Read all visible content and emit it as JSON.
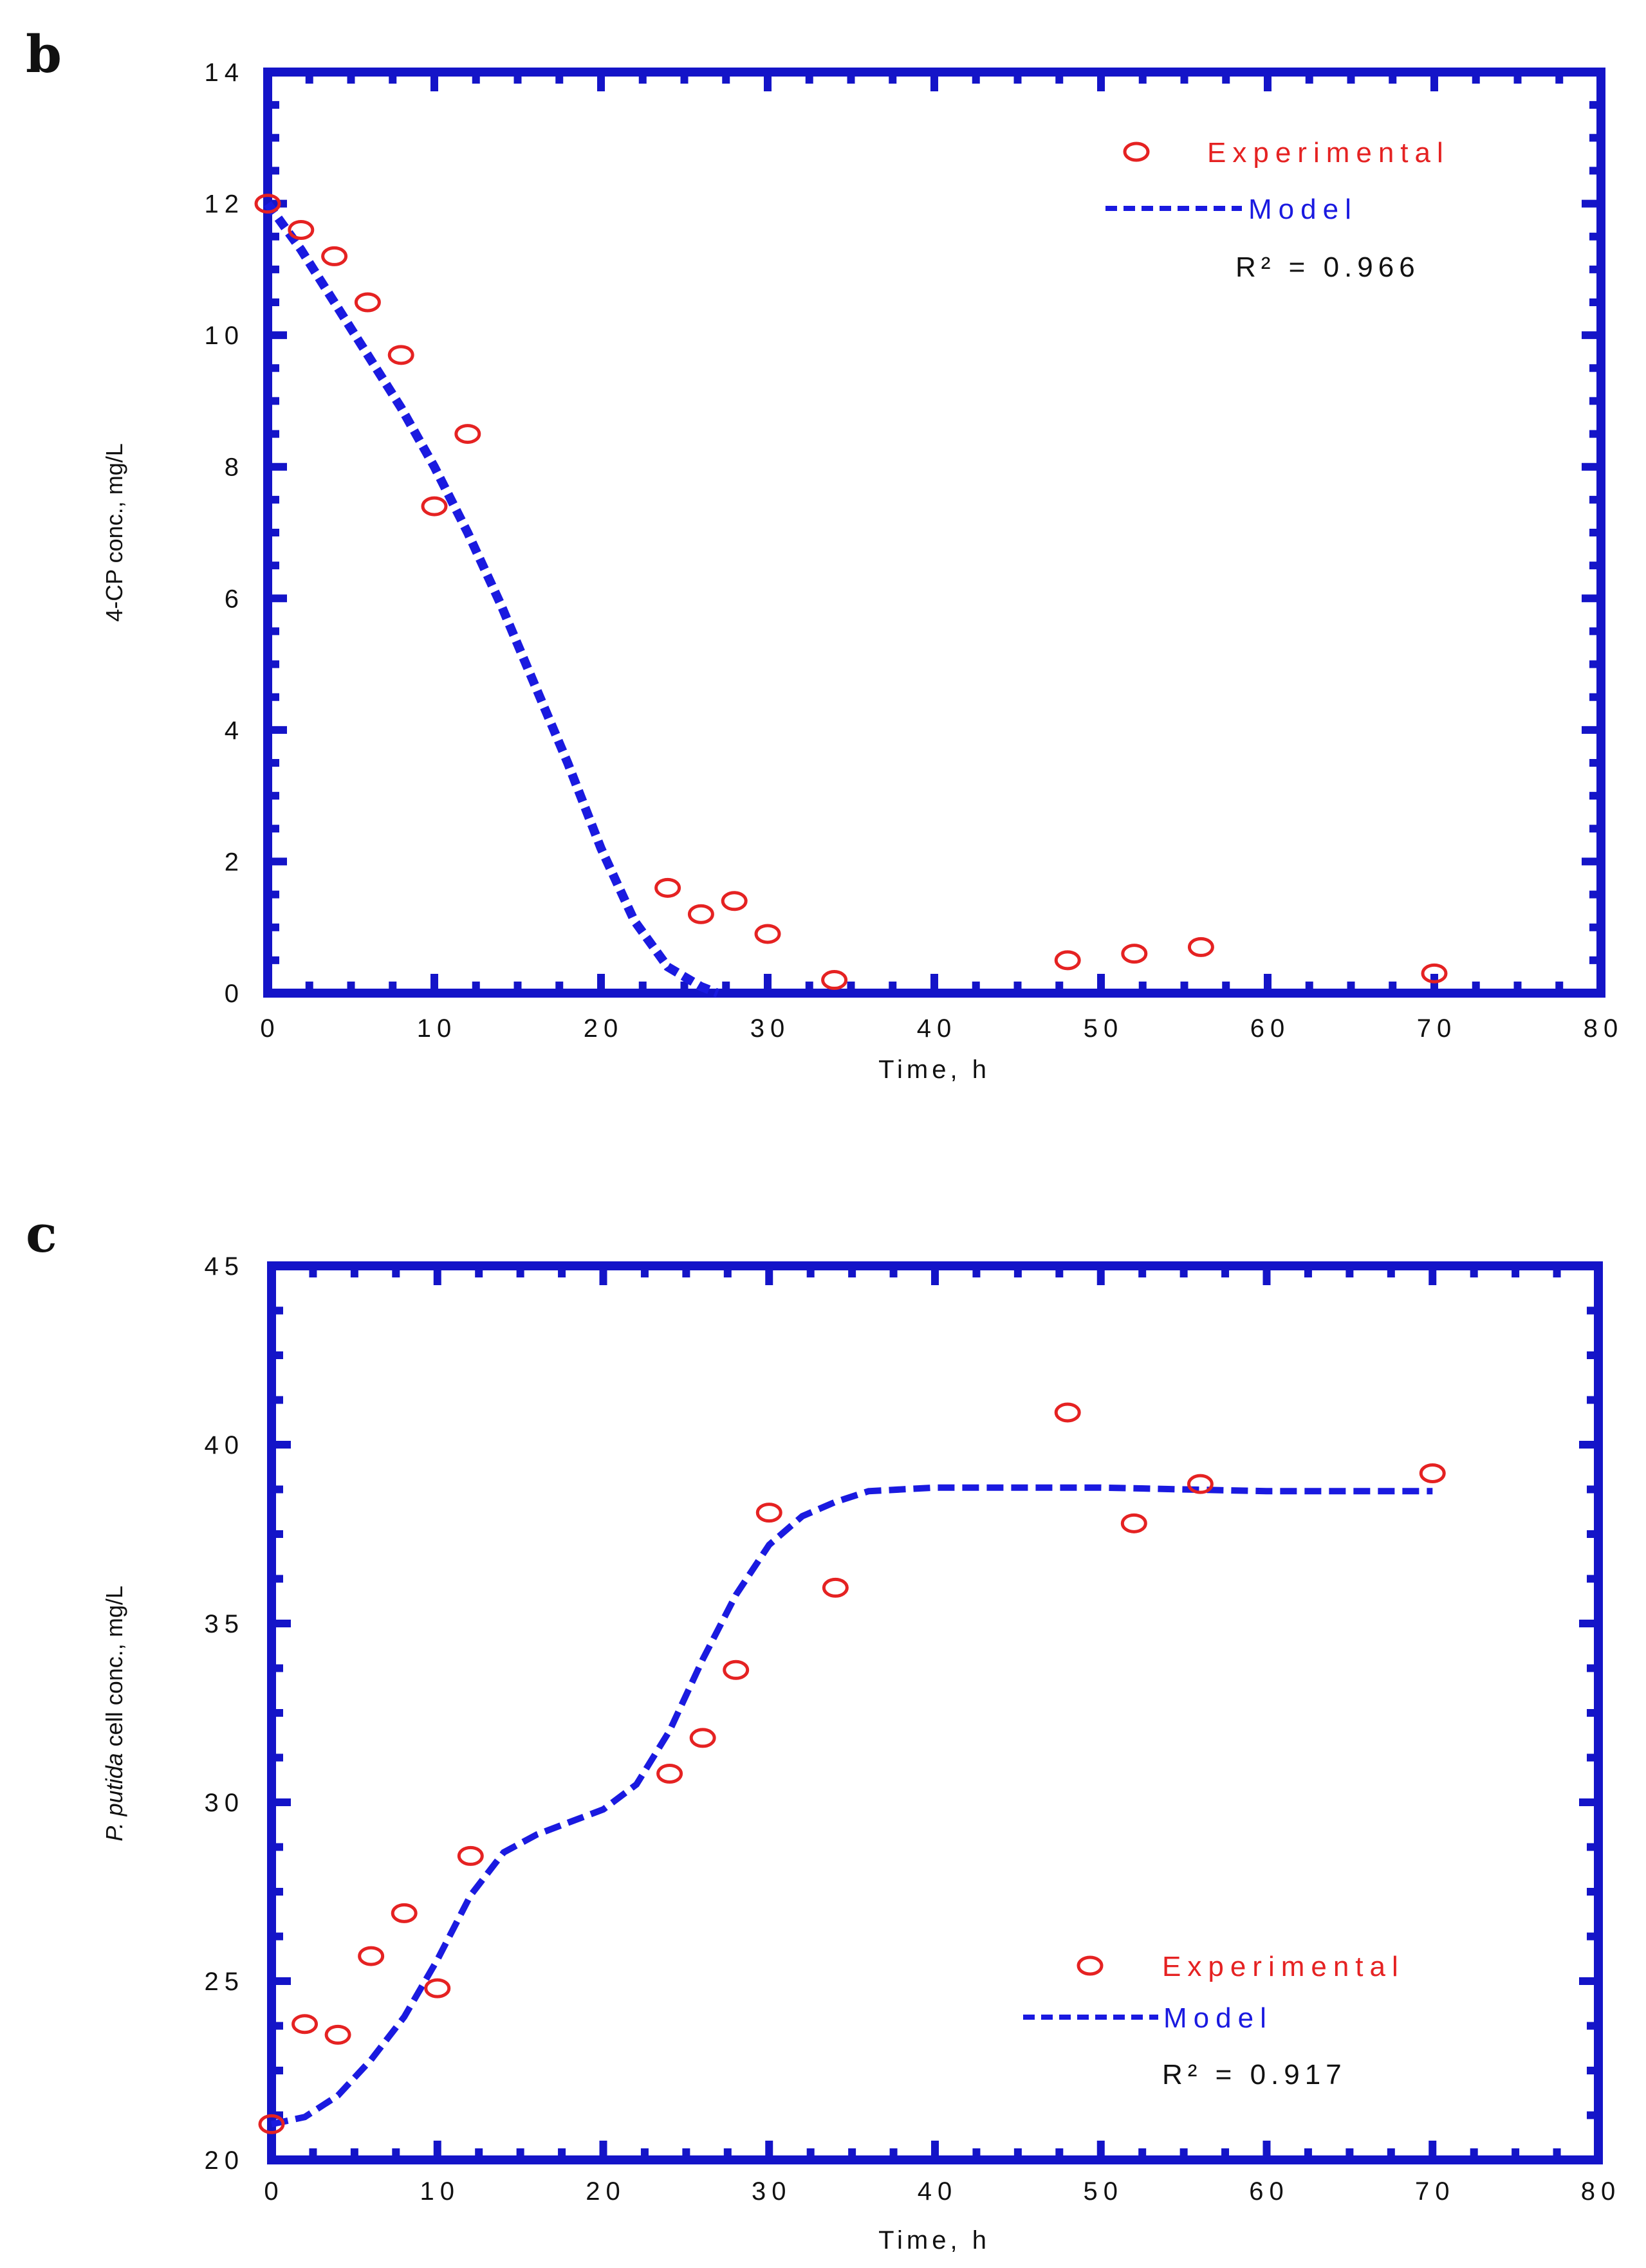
{
  "colors": {
    "frame": "#1414c8",
    "experimental": "#e52222",
    "model": "#1a1ae0",
    "text": "#111111"
  },
  "chart_data": [
    {
      "type": "scatter",
      "panel": "b",
      "xlabel": "Time, h",
      "ylabel": "4-CP conc., mg/L",
      "xlim": [
        0,
        80
      ],
      "ylim": [
        0,
        14
      ],
      "xticks": [
        "0",
        "10",
        "20",
        "30",
        "40",
        "50",
        "60",
        "70",
        "80"
      ],
      "yticks": [
        "0",
        "2",
        "4",
        "6",
        "8",
        "10",
        "12",
        "14"
      ],
      "legend": {
        "experimental": "Experimental",
        "model": "Model",
        "r2": "R² = 0.966",
        "placement": "top-right"
      },
      "series": [
        {
          "name": "Experimental",
          "type": "scatter",
          "x": [
            0,
            2,
            4,
            6,
            8,
            10,
            12,
            24,
            26,
            28,
            30,
            34,
            48,
            52,
            56,
            70
          ],
          "y": [
            12.0,
            11.6,
            11.2,
            10.5,
            9.7,
            7.4,
            8.5,
            1.6,
            1.2,
            1.4,
            0.9,
            0.2,
            0.5,
            0.6,
            0.7,
            0.3
          ]
        },
        {
          "name": "Model",
          "type": "line",
          "style": "dashed",
          "x": [
            0,
            2,
            4,
            6,
            8,
            10,
            12,
            14,
            16,
            18,
            20,
            22,
            24,
            26,
            27
          ],
          "y": [
            12.0,
            11.3,
            10.5,
            9.7,
            8.9,
            8.0,
            7.0,
            5.9,
            4.7,
            3.5,
            2.2,
            1.1,
            0.4,
            0.1,
            0.0
          ]
        }
      ]
    },
    {
      "type": "scatter",
      "panel": "c",
      "xlabel": "Time, h",
      "ylabel_italic": "P. putida",
      "ylabel": "cell conc., mg/L",
      "xlim": [
        0,
        80
      ],
      "ylim": [
        20,
        45
      ],
      "xticks": [
        "0",
        "10",
        "20",
        "30",
        "40",
        "50",
        "60",
        "70",
        "80"
      ],
      "yticks": [
        "20",
        "25",
        "30",
        "35",
        "40",
        "45"
      ],
      "legend": {
        "experimental": "Experimental",
        "model": "Model",
        "r2": "R² = 0.917",
        "placement": "bottom-right"
      },
      "series": [
        {
          "name": "Experimental",
          "type": "scatter",
          "x": [
            0,
            2,
            4,
            6,
            8,
            10,
            12,
            24,
            26,
            28,
            30,
            34,
            48,
            52,
            56,
            70
          ],
          "y": [
            21.0,
            23.8,
            23.5,
            25.7,
            26.9,
            24.8,
            28.5,
            30.8,
            31.8,
            33.7,
            38.1,
            36.0,
            40.9,
            37.8,
            38.9,
            39.2
          ]
        },
        {
          "name": "Model",
          "type": "line",
          "style": "dashed",
          "x": [
            0,
            2,
            4,
            6,
            8,
            10,
            12,
            14,
            16,
            20,
            22,
            24,
            26,
            28,
            30,
            32,
            34,
            36,
            40,
            50,
            60,
            70
          ],
          "y": [
            21.0,
            21.2,
            21.8,
            22.8,
            24.0,
            25.6,
            27.4,
            28.6,
            29.1,
            29.8,
            30.5,
            32.0,
            34.0,
            35.8,
            37.2,
            38.0,
            38.4,
            38.7,
            38.8,
            38.8,
            38.7,
            38.7
          ]
        }
      ]
    }
  ]
}
